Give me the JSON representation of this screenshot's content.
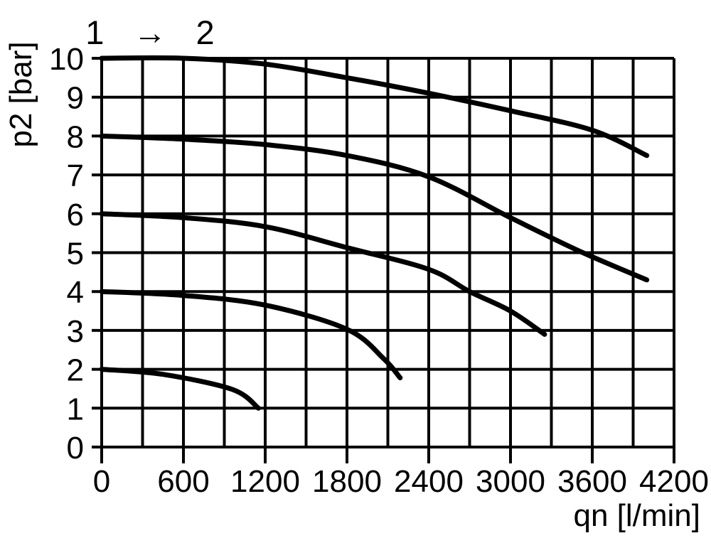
{
  "figure": {
    "background": "#ffffff"
  },
  "chart_data": {
    "type": "line",
    "title": "1 → 2",
    "xlabel": "qn [l/min]",
    "ylabel": "p2 [bar]",
    "xlim": [
      0,
      4200
    ],
    "ylim": [
      0,
      10
    ],
    "x_ticks": [
      0,
      600,
      1200,
      1800,
      2400,
      3000,
      3600,
      4200
    ],
    "y_ticks": [
      0,
      1,
      2,
      3,
      4,
      5,
      6,
      7,
      8,
      9,
      10
    ],
    "x_grid_step": 300,
    "y_grid_step": 1,
    "grid": true,
    "legend_position": "none",
    "colors": {
      "curves": "#000000",
      "grid": "#000000",
      "text": "#000000",
      "background": "#ffffff"
    },
    "series": [
      {
        "name": "curve-start-10-bar",
        "points": [
          [
            0,
            10
          ],
          [
            600,
            10
          ],
          [
            1200,
            9.85
          ],
          [
            1800,
            9.5
          ],
          [
            2400,
            9.1
          ],
          [
            3000,
            8.65
          ],
          [
            3600,
            8.15
          ],
          [
            4000,
            7.5
          ]
        ]
      },
      {
        "name": "curve-start-8-bar",
        "points": [
          [
            0,
            8
          ],
          [
            600,
            7.92
          ],
          [
            1200,
            7.78
          ],
          [
            1800,
            7.5
          ],
          [
            2400,
            6.95
          ],
          [
            3000,
            5.9
          ],
          [
            3500,
            5.05
          ],
          [
            4000,
            4.3
          ]
        ]
      },
      {
        "name": "curve-start-6-bar",
        "points": [
          [
            0,
            6
          ],
          [
            600,
            5.9
          ],
          [
            1200,
            5.67
          ],
          [
            1800,
            5.13
          ],
          [
            2400,
            4.57
          ],
          [
            2700,
            4.0
          ],
          [
            3000,
            3.5
          ],
          [
            3250,
            2.9
          ]
        ]
      },
      {
        "name": "curve-start-4-bar",
        "points": [
          [
            0,
            4
          ],
          [
            600,
            3.9
          ],
          [
            1200,
            3.65
          ],
          [
            1800,
            3.03
          ],
          [
            2070,
            2.27
          ],
          [
            2190,
            1.78
          ]
        ]
      },
      {
        "name": "curve-start-2-bar",
        "points": [
          [
            0,
            2
          ],
          [
            450,
            1.87
          ],
          [
            960,
            1.48
          ],
          [
            1150,
            1.0
          ]
        ]
      }
    ]
  }
}
